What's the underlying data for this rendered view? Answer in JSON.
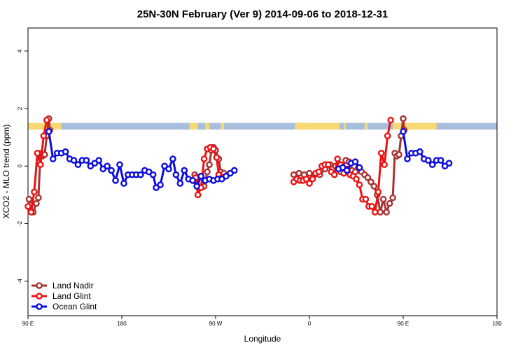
{
  "chart_data": {
    "type": "line",
    "title": "25N-30N February (Ver 9)   2014-09-06 to 2018-12-31",
    "xlabel": "Longitude",
    "ylabel": "XCO2 - MLO trend (ppm)",
    "xlim": [
      90,
      540
    ],
    "ylim": [
      -5.2,
      4.8
    ],
    "x_ticks": [
      {
        "value": 90,
        "label": "90 E"
      },
      {
        "value": 180,
        "label": "180"
      },
      {
        "value": 270,
        "label": "90 W"
      },
      {
        "value": 360,
        "label": "0"
      },
      {
        "value": 450,
        "label": "90 E"
      },
      {
        "value": 540,
        "label": "180"
      }
    ],
    "y_ticks": [
      {
        "value": -4,
        "label": "-4"
      },
      {
        "value": -2,
        "label": "-2"
      },
      {
        "value": 0,
        "label": "0"
      },
      {
        "value": 2,
        "label": "2"
      },
      {
        "value": 4,
        "label": "4"
      }
    ],
    "grid": false,
    "legend_position": "bottom-left",
    "land_mask": {
      "y_range": [
        1.27,
        1.5
      ],
      "land_color": "#f7d873",
      "ocean_color": "#a7bedd",
      "land_x": [
        [
          90,
          122
        ],
        [
          245,
          253
        ],
        [
          260,
          264
        ],
        [
          275,
          278
        ],
        [
          346,
          360
        ],
        [
          360,
          389
        ],
        [
          393,
          395
        ],
        [
          413,
          416
        ],
        [
          440,
          476
        ],
        [
          476,
          482
        ]
      ]
    },
    "series": [
      {
        "name": "Land Nadir",
        "color": "#a83232",
        "points": [
          [
            91,
            -1.15
          ],
          [
            92,
            -1.35
          ],
          [
            95,
            -1.6
          ],
          [
            98,
            -1.3
          ],
          [
            100,
            -1.1
          ],
          [
            102,
            0.45
          ],
          [
            104,
            0.35
          ],
          [
            106,
            0.4
          ],
          [
            108,
            1.05
          ],
          [
            110,
            1.65
          ],
          [
            111,
            1.25
          ],
          [
            250,
            -0.3
          ],
          [
            252,
            -0.4
          ],
          [
            255,
            -0.75
          ],
          [
            259,
            -0.7
          ],
          [
            262,
            -0.2
          ],
          [
            264,
            0.05
          ],
          [
            266,
            0.55
          ],
          [
            268,
            0.65
          ],
          [
            270,
            0.55
          ],
          [
            273,
            0.25
          ],
          [
            275,
            -0.2
          ],
          [
            278,
            -0.25
          ],
          [
            345,
            -0.3
          ],
          [
            350,
            -0.25
          ],
          [
            355,
            -0.3
          ],
          [
            360,
            -0.25
          ],
          [
            365,
            -0.3
          ],
          [
            370,
            -0.3
          ],
          [
            375,
            -0.1
          ],
          [
            380,
            0.05
          ],
          [
            385,
            0.0
          ],
          [
            390,
            -0.2
          ],
          [
            395,
            0.2
          ],
          [
            398,
            0.15
          ],
          [
            401,
            -0.15
          ],
          [
            404,
            -0.2
          ],
          [
            407,
            -0.05
          ],
          [
            410,
            -0.2
          ],
          [
            413,
            -0.3
          ],
          [
            416,
            -0.4
          ],
          [
            419,
            -0.55
          ],
          [
            422,
            -0.7
          ],
          [
            425,
            -1.0
          ],
          [
            428,
            -1.6
          ],
          [
            431,
            -1.15
          ],
          [
            434,
            -1.6
          ],
          [
            437,
            -1.3
          ],
          [
            440,
            -1.1
          ],
          [
            442,
            0.45
          ],
          [
            444,
            0.35
          ],
          [
            446,
            0.4
          ],
          [
            448,
            1.05
          ],
          [
            450,
            1.65
          ],
          [
            451,
            1.25
          ]
        ]
      },
      {
        "name": "Land Glint",
        "color": "#ee1111",
        "points": [
          [
            90,
            -1.4
          ],
          [
            93,
            -1.6
          ],
          [
            96,
            -0.9
          ],
          [
            99,
            0.45
          ],
          [
            102,
            0.05
          ],
          [
            105,
            1.05
          ],
          [
            108,
            1.6
          ],
          [
            251,
            -0.4
          ],
          [
            253,
            -1.0
          ],
          [
            256,
            -0.75
          ],
          [
            259,
            0.25
          ],
          [
            262,
            0.6
          ],
          [
            265,
            0.65
          ],
          [
            268,
            0.6
          ],
          [
            271,
            0.3
          ],
          [
            273,
            -0.3
          ],
          [
            276,
            -0.4
          ],
          [
            345,
            -0.55
          ],
          [
            348,
            -0.45
          ],
          [
            351,
            -0.5
          ],
          [
            354,
            -0.5
          ],
          [
            357,
            -0.45
          ],
          [
            360,
            -0.6
          ],
          [
            363,
            -0.45
          ],
          [
            366,
            -0.25
          ],
          [
            369,
            -0.2
          ],
          [
            372,
            0.0
          ],
          [
            375,
            0.05
          ],
          [
            378,
            0.05
          ],
          [
            381,
            -0.2
          ],
          [
            384,
            -0.3
          ],
          [
            387,
            0.25
          ],
          [
            390,
            0.05
          ],
          [
            393,
            -0.25
          ],
          [
            396,
            -0.1
          ],
          [
            399,
            -0.3
          ],
          [
            402,
            -0.35
          ],
          [
            405,
            -0.45
          ],
          [
            408,
            -0.65
          ],
          [
            411,
            -1.15
          ],
          [
            414,
            -1.15
          ],
          [
            417,
            -1.4
          ],
          [
            420,
            -1.4
          ],
          [
            423,
            -1.6
          ],
          [
            426,
            -0.9
          ],
          [
            429,
            0.45
          ],
          [
            432,
            0.05
          ],
          [
            435,
            1.05
          ],
          [
            438,
            1.6
          ]
        ]
      },
      {
        "name": "Ocean Glint",
        "color": "#0a0ae0",
        "points": [
          [
            110,
            1.2
          ],
          [
            114,
            0.25
          ],
          [
            118,
            0.45
          ],
          [
            122,
            0.45
          ],
          [
            126,
            0.5
          ],
          [
            130,
            0.25
          ],
          [
            134,
            0.2
          ],
          [
            138,
            0.05
          ],
          [
            142,
            0.2
          ],
          [
            146,
            0.2
          ],
          [
            150,
            0.0
          ],
          [
            154,
            0.1
          ],
          [
            158,
            0.2
          ],
          [
            162,
            -0.1
          ],
          [
            166,
            0.0
          ],
          [
            170,
            -0.15
          ],
          [
            174,
            -0.5
          ],
          [
            178,
            0.05
          ],
          [
            182,
            -0.6
          ],
          [
            186,
            -0.3
          ],
          [
            190,
            -0.3
          ],
          [
            194,
            -0.3
          ],
          [
            198,
            -0.3
          ],
          [
            202,
            -0.15
          ],
          [
            206,
            -0.2
          ],
          [
            210,
            -0.3
          ],
          [
            213,
            -0.75
          ],
          [
            217,
            -0.65
          ],
          [
            221,
            0.0
          ],
          [
            225,
            -0.1
          ],
          [
            229,
            0.25
          ],
          [
            232,
            -0.3
          ],
          [
            236,
            -0.6
          ],
          [
            240,
            -0.15
          ],
          [
            244,
            -0.45
          ],
          [
            248,
            -0.5
          ],
          [
            252,
            -0.7
          ],
          [
            256,
            -0.35
          ],
          [
            260,
            -0.5
          ],
          [
            264,
            -0.45
          ],
          [
            268,
            -0.5
          ],
          [
            272,
            -0.45
          ],
          [
            276,
            -0.45
          ],
          [
            280,
            -0.35
          ],
          [
            284,
            -0.25
          ],
          [
            288,
            -0.15
          ],
          [
            388,
            -0.1
          ],
          [
            392,
            -0.05
          ],
          [
            396,
            -0.15
          ],
          [
            400,
            0.1
          ],
          [
            404,
            0.15
          ],
          [
            408,
            -0.05
          ],
          [
            450,
            1.2
          ],
          [
            454,
            0.25
          ],
          [
            458,
            0.45
          ],
          [
            462,
            0.45
          ],
          [
            466,
            0.5
          ],
          [
            470,
            0.25
          ],
          [
            474,
            0.2
          ],
          [
            478,
            0.05
          ],
          [
            482,
            0.2
          ],
          [
            486,
            0.2
          ],
          [
            490,
            0.0
          ],
          [
            494,
            0.1
          ]
        ]
      }
    ]
  }
}
